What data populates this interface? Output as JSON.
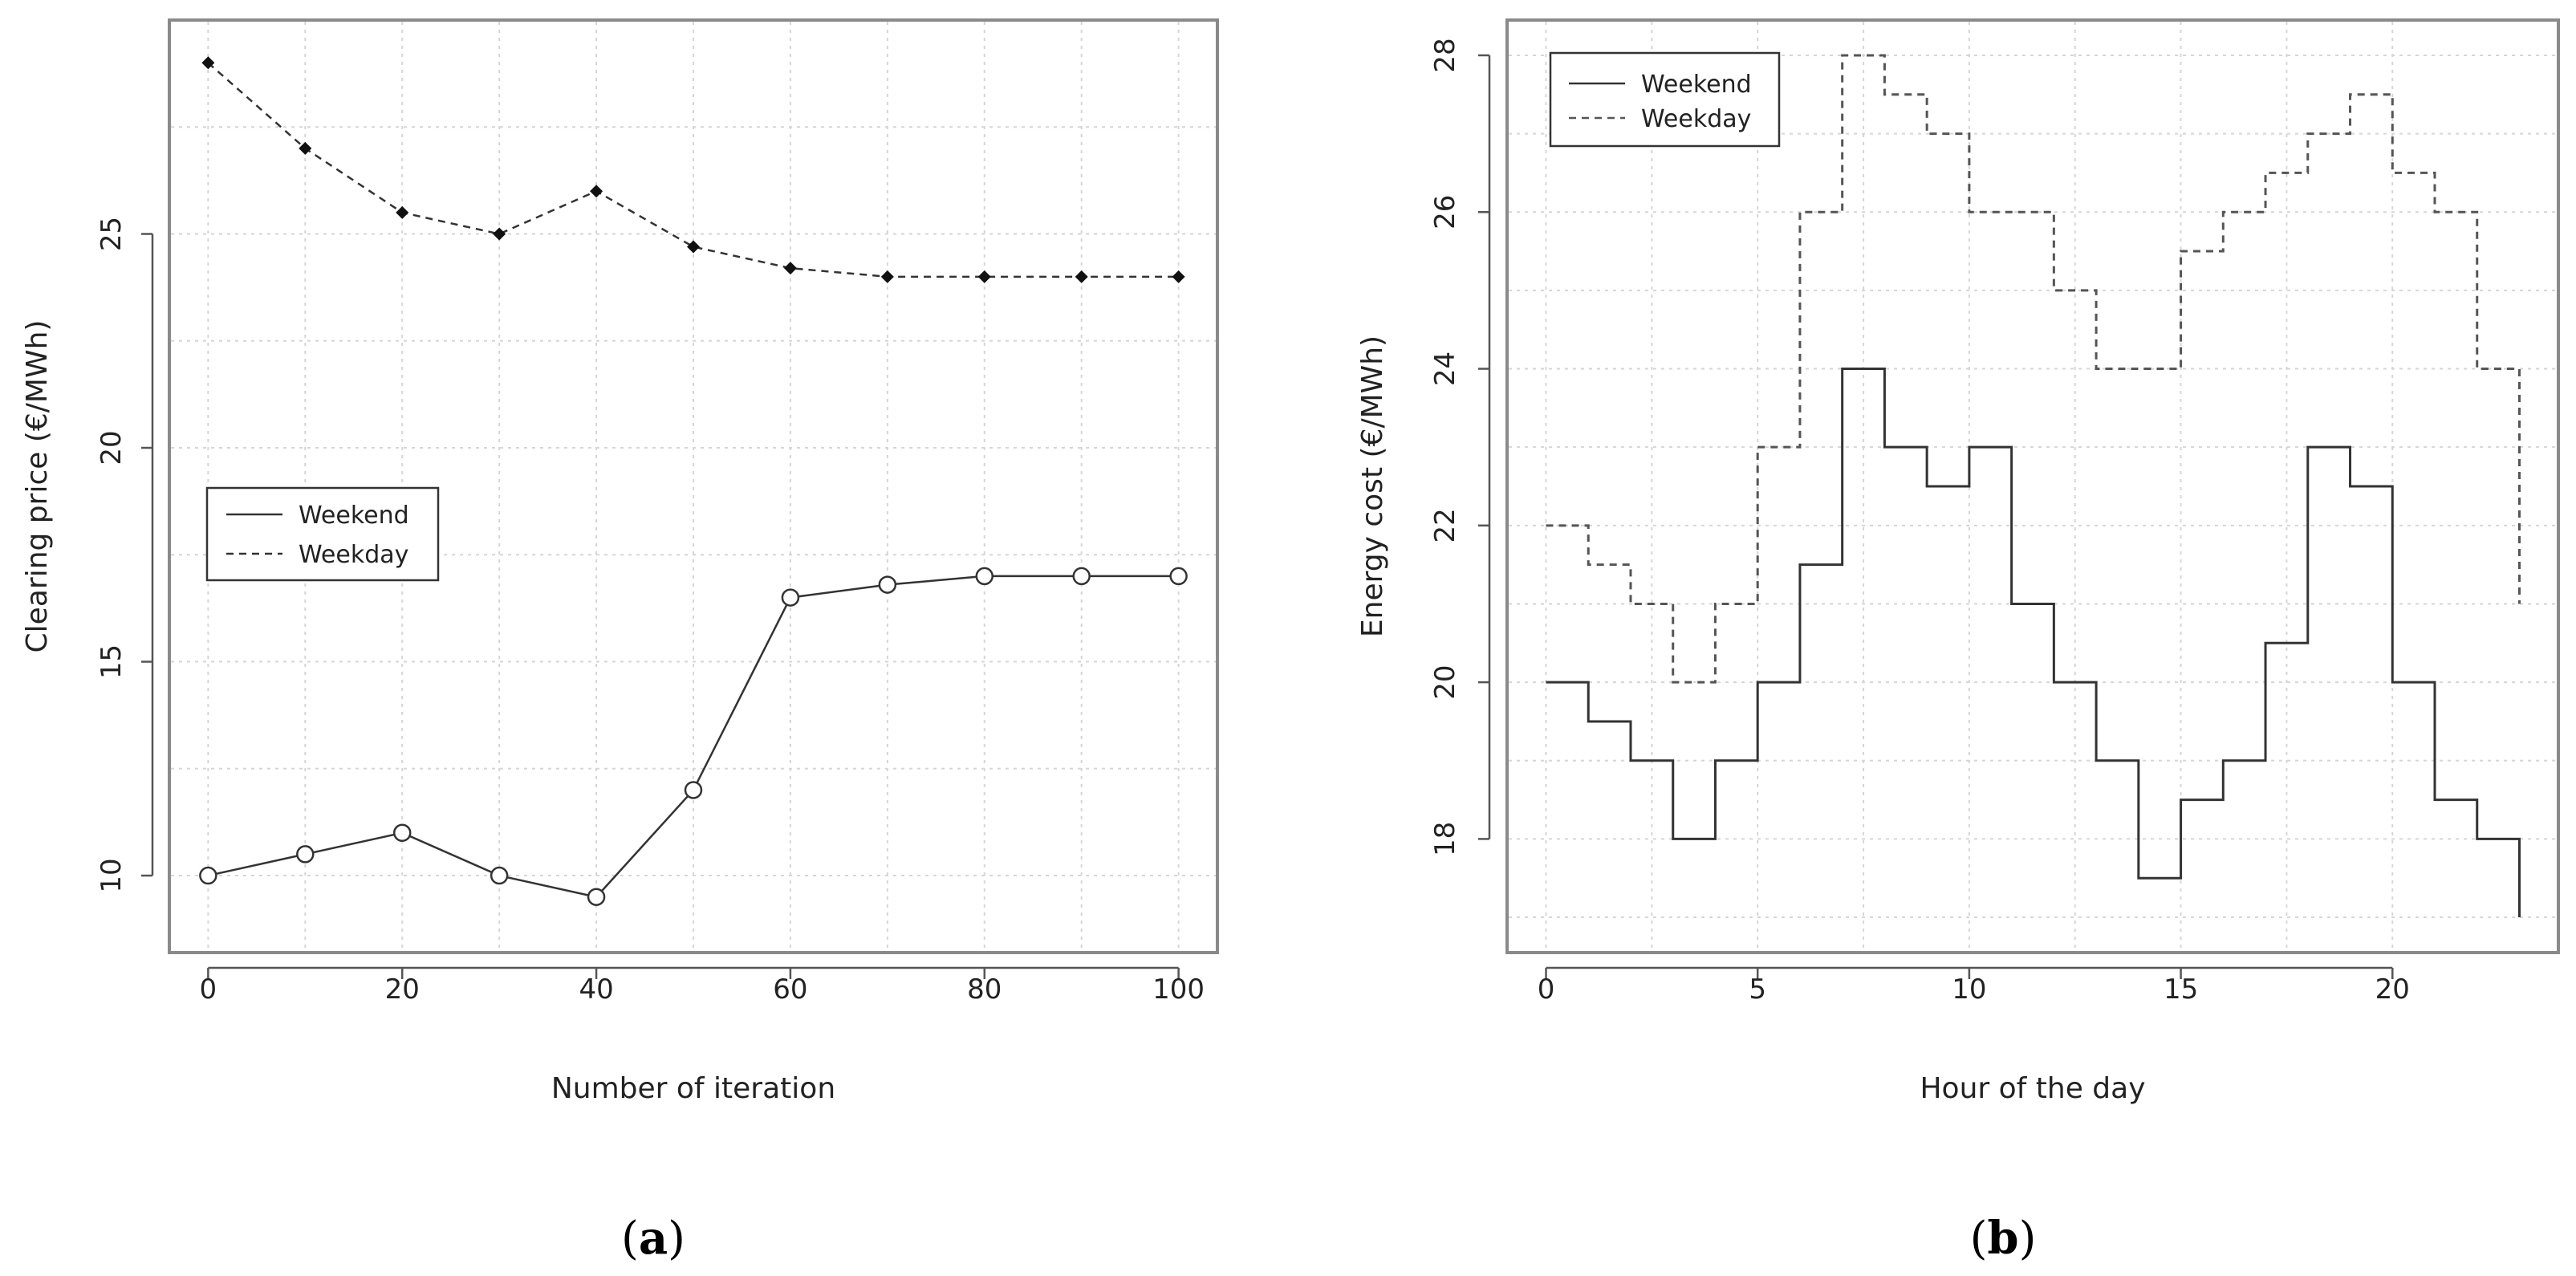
{
  "chart_data": [
    {
      "id": "a",
      "type": "line",
      "caption_label": "a",
      "xlabel": "Number of iteration",
      "ylabel": "Clearing price (€/MWh)",
      "xlim": [
        -4,
        104
      ],
      "ylim": [
        8.2,
        30.0
      ],
      "xticks": [
        0,
        20,
        40,
        60,
        80,
        100
      ],
      "xtick_labels": [
        "0",
        "20",
        "40",
        "60",
        "80",
        "100"
      ],
      "yticks": [
        10,
        15,
        20,
        25
      ],
      "ytick_labels": [
        "10",
        "15",
        "20",
        "25"
      ],
      "grid": true,
      "legend_position": "center-left",
      "x": [
        0,
        10,
        20,
        30,
        40,
        50,
        60,
        70,
        80,
        90,
        100
      ],
      "series": [
        {
          "name": "Weekend",
          "style": "solid-open-circles",
          "values": [
            10.0,
            10.5,
            11.0,
            10.0,
            9.5,
            12.0,
            16.5,
            16.8,
            17.0,
            17.0,
            17.0
          ]
        },
        {
          "name": "Weekday",
          "style": "dashed-filled-diamonds",
          "values": [
            29.0,
            27.0,
            25.5,
            25.0,
            26.0,
            24.7,
            24.2,
            24.0,
            24.0,
            24.0,
            24.0
          ]
        }
      ]
    },
    {
      "id": "b",
      "type": "line",
      "step": true,
      "caption_label": "b",
      "xlabel": "Hour of the day",
      "ylabel": "Energy cost (€/MWh)",
      "xlim": [
        -0.92,
        23.92
      ],
      "ylim": [
        16.55,
        28.45
      ],
      "xticks": [
        0,
        5,
        10,
        15,
        20
      ],
      "xtick_labels": [
        "0",
        "5",
        "10",
        "15",
        "20"
      ],
      "yticks": [
        18,
        20,
        22,
        24,
        26,
        28
      ],
      "ytick_labels": [
        "18",
        "20",
        "22",
        "24",
        "26",
        "28"
      ],
      "grid": true,
      "legend_position": "top-left",
      "x": [
        0,
        1,
        2,
        3,
        4,
        5,
        6,
        7,
        8,
        9,
        10,
        11,
        12,
        13,
        14,
        15,
        16,
        17,
        18,
        19,
        20,
        21,
        22,
        23
      ],
      "series": [
        {
          "name": "Weekend",
          "style": "solid",
          "values": [
            20,
            19.5,
            19,
            18,
            19,
            20,
            21.5,
            24,
            23,
            22.5,
            23,
            21,
            20,
            19,
            17.5,
            18.5,
            19,
            20.5,
            23,
            22.5,
            20,
            18.5,
            18,
            17
          ]
        },
        {
          "name": "Weekday",
          "style": "dashed",
          "values": [
            22,
            21.5,
            21,
            20,
            21,
            23,
            26,
            28,
            27.5,
            27,
            26,
            26,
            25,
            24,
            24,
            25.5,
            26,
            26.5,
            27,
            27.5,
            26.5,
            26,
            24,
            21
          ]
        }
      ]
    }
  ]
}
